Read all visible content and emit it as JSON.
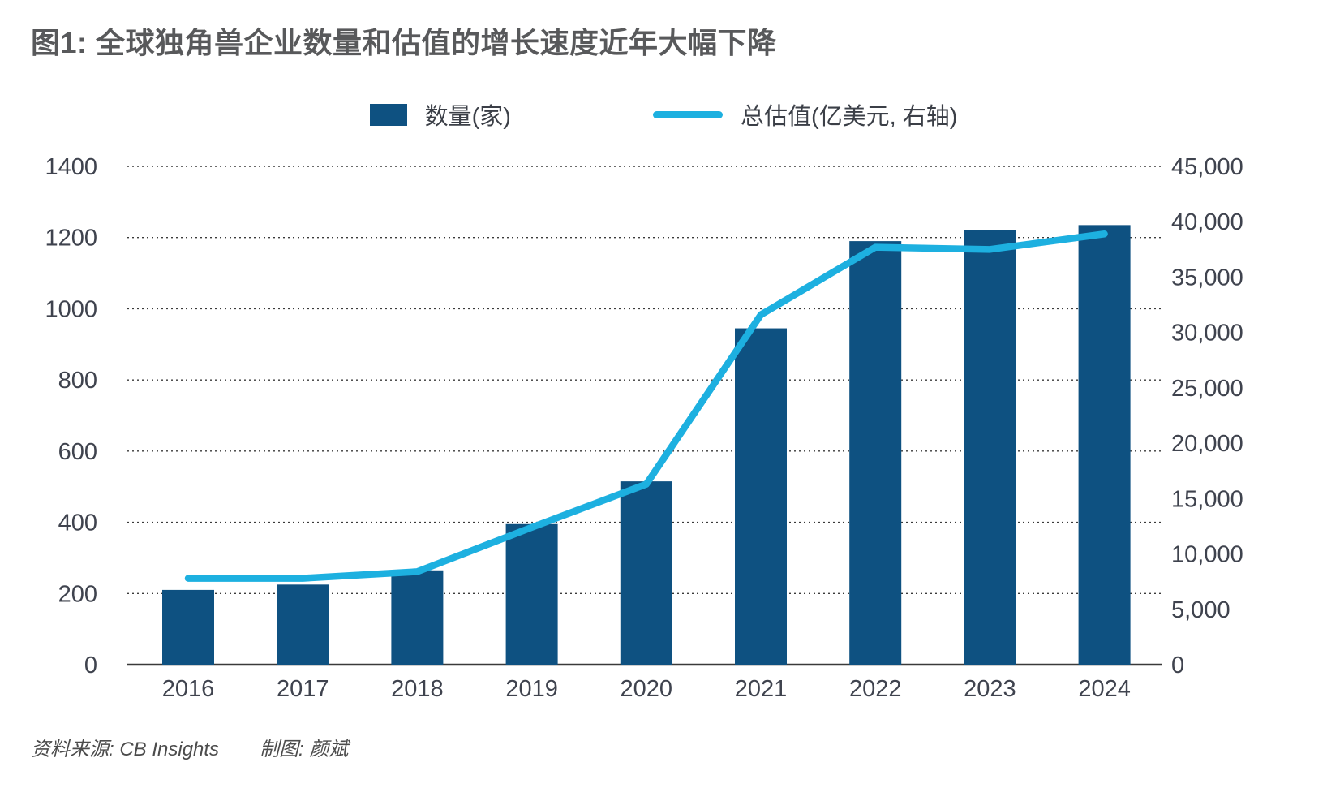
{
  "title": "图1: 全球独角兽企业数量和估值的增长速度近年大幅下降",
  "legend": {
    "bars_label": "数量(家)",
    "line_label": "总估值(亿美元, 右轴)"
  },
  "footer": {
    "source": "资料来源: CB Insights",
    "credit": "制图: 颜斌"
  },
  "colors": {
    "bar": "#0e5181",
    "line": "#1db0e0",
    "title_text": "#58595b",
    "axis_text": "#3f434e",
    "gridline": "#3a3a3a"
  },
  "chart_data": {
    "type": "bar",
    "subtype": "combo bar+line, dual axis",
    "title": "图1: 全球独角兽企业数量和估值的增长速度近年大幅下降",
    "categories": [
      "2016",
      "2017",
      "2018",
      "2019",
      "2020",
      "2021",
      "2022",
      "2023",
      "2024"
    ],
    "series": [
      {
        "name": "数量(家)",
        "type": "bar",
        "axis": "left",
        "color": "#0e5181",
        "values": [
          210,
          225,
          265,
          395,
          515,
          945,
          1190,
          1220,
          1235
        ]
      },
      {
        "name": "总估值(亿美元, 右轴)",
        "type": "line",
        "axis": "right",
        "color": "#1db0e0",
        "values": [
          7800,
          7800,
          8400,
          12400,
          16300,
          31600,
          37700,
          37500,
          38900
        ]
      }
    ],
    "left_axis": {
      "min": 0,
      "max": 1400,
      "step": 200,
      "tick_labels": [
        "0",
        "200",
        "400",
        "600",
        "800",
        "1000",
        "1200",
        "1400"
      ]
    },
    "right_axis": {
      "min": 0,
      "max": 45000,
      "step": 5000,
      "tick_labels": [
        "0",
        "5,000",
        "10,000",
        "15,000",
        "20,000",
        "25,000",
        "30,000",
        "35,000",
        "40,000",
        "45,000"
      ]
    },
    "grid": "dotted horizontal lines at left-axis ticks",
    "legend_position": "top-center",
    "source": "资料来源: CB Insights",
    "credit": "制图: 颜斌"
  }
}
